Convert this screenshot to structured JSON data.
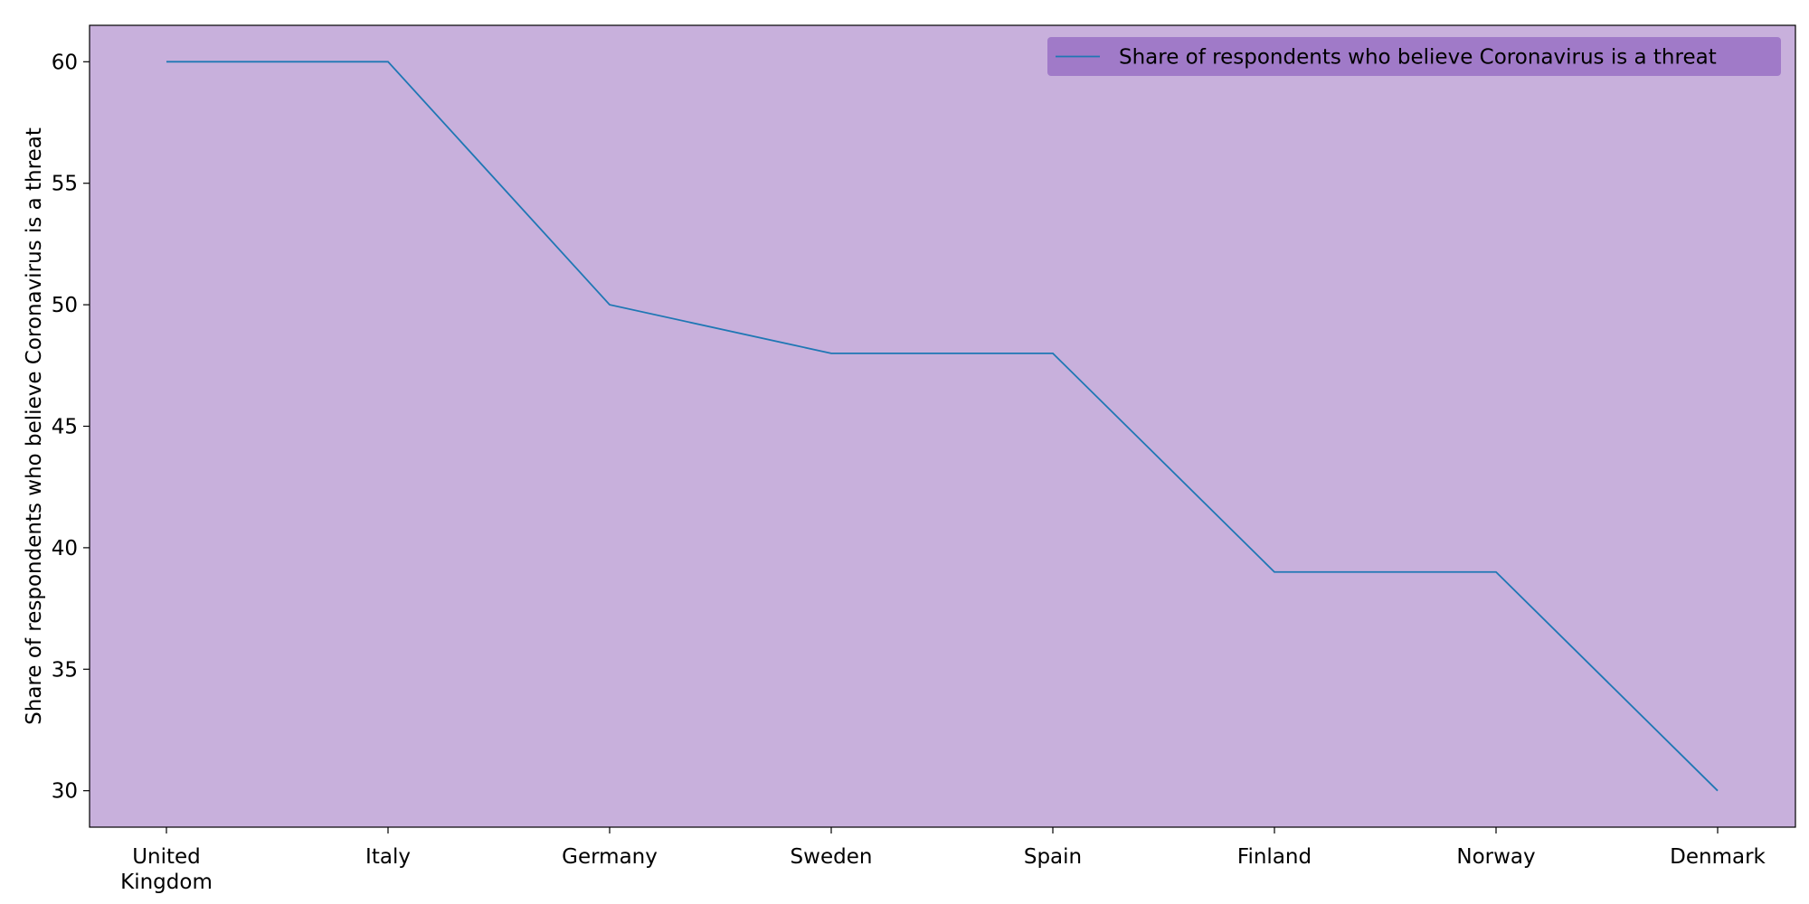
{
  "chart_data": {
    "type": "line",
    "title": "",
    "xlabel": "",
    "ylabel": "Share of respondents who believe Coronavirus is a threat",
    "categories": [
      "United Kingdom",
      "Italy",
      "Germany",
      "Sweden",
      "Spain",
      "Finland",
      "Norway",
      "Denmark"
    ],
    "series": [
      {
        "name": "Share of respondents who believe Coronavirus is a threat",
        "values": [
          60,
          60,
          50,
          48,
          48,
          39,
          39,
          30
        ],
        "color": "#1f77b4"
      }
    ],
    "yticks": [
      30,
      35,
      40,
      45,
      50,
      55,
      60
    ],
    "ylim": [
      28.5,
      61.5
    ],
    "grid": false,
    "legend": "top-right",
    "colors": {
      "plot_background": "#c8b0dc",
      "legend_background": "#a07ac8",
      "axes": "#000000"
    }
  }
}
